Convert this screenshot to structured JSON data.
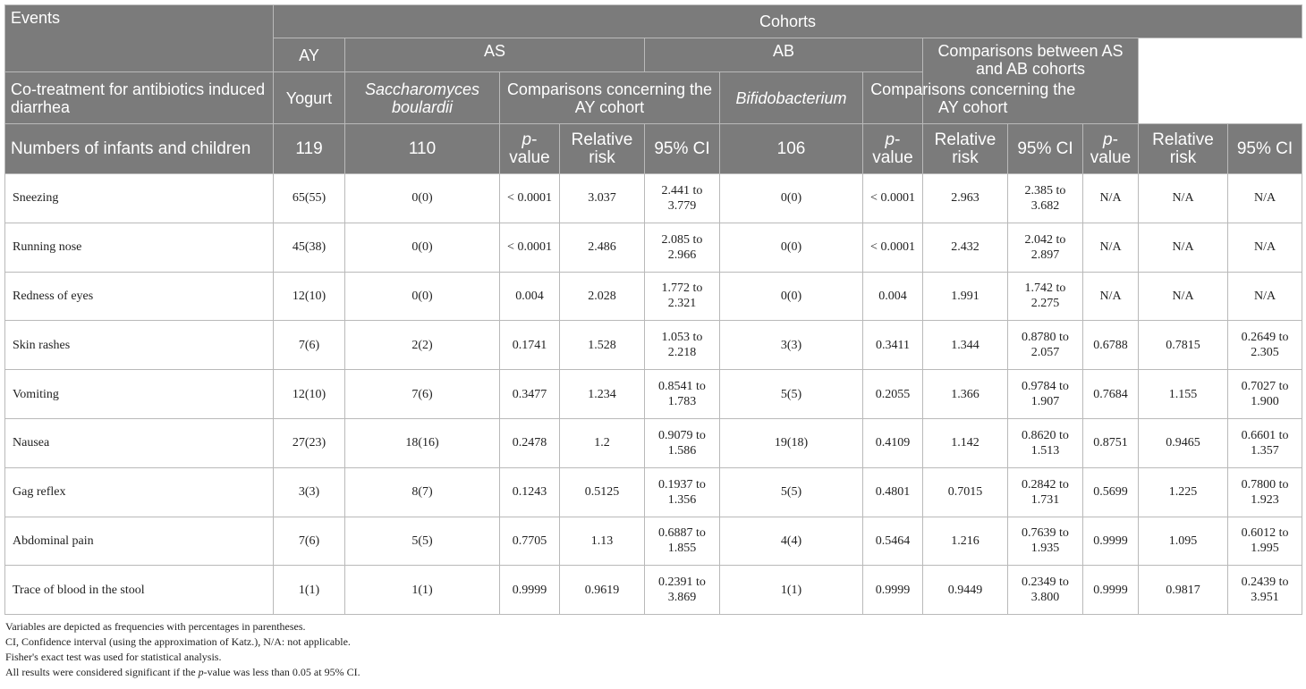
{
  "header": {
    "events": "Events",
    "cohorts": "Cohorts",
    "ay": "AY",
    "as": "AS",
    "ab": "AB",
    "as_ab_comparisons": "Comparisons between AS and AB cohorts",
    "cotreatment": "Co-treatment for antibiotics induced diarrhea",
    "yogurt": "Yogurt",
    "s_boulardii": "Saccharomyces boulardii",
    "comparisons_ay": "Comparisons concerning the AY cohort",
    "bifido": "Bifidobacterium",
    "numbers_label": "Numbers of infants and children",
    "n_ay": "119",
    "n_as": "110",
    "n_ab": "106",
    "p_italic": "p",
    "p_rest": "-value",
    "rr": "Relative risk",
    "ci": "95% CI"
  },
  "rows": [
    {
      "event": "Sneezing",
      "ay": "65(55)",
      "as": "0(0)",
      "as_p": "< 0.0001",
      "as_rr": "3.037",
      "as_ci": "2.441 to 3.779",
      "ab": "0(0)",
      "ab_p": "< 0.0001",
      "ab_rr": "2.963",
      "ab_ci": "2.385 to 3.682",
      "cmp_p": "N/A",
      "cmp_rr": "N/A",
      "cmp_ci": "N/A"
    },
    {
      "event": "Running nose",
      "ay": "45(38)",
      "as": "0(0)",
      "as_p": "< 0.0001",
      "as_rr": "2.486",
      "as_ci": "2.085 to 2.966",
      "ab": "0(0)",
      "ab_p": "< 0.0001",
      "ab_rr": "2.432",
      "ab_ci": "2.042 to 2.897",
      "cmp_p": "N/A",
      "cmp_rr": "N/A",
      "cmp_ci": "N/A"
    },
    {
      "event": "Redness of eyes",
      "ay": "12(10)",
      "as": "0(0)",
      "as_p": "0.004",
      "as_rr": "2.028",
      "as_ci": "1.772 to 2.321",
      "ab": "0(0)",
      "ab_p": "0.004",
      "ab_rr": "1.991",
      "ab_ci": "1.742 to 2.275",
      "cmp_p": "N/A",
      "cmp_rr": "N/A",
      "cmp_ci": "N/A"
    },
    {
      "event": "Skin rashes",
      "ay": "7(6)",
      "as": "2(2)",
      "as_p": "0.1741",
      "as_rr": "1.528",
      "as_ci": "1.053 to 2.218",
      "ab": "3(3)",
      "ab_p": "0.3411",
      "ab_rr": "1.344",
      "ab_ci": "0.8780 to 2.057",
      "cmp_p": "0.6788",
      "cmp_rr": "0.7815",
      "cmp_ci": "0.2649 to 2.305"
    },
    {
      "event": "Vomiting",
      "ay": "12(10)",
      "as": "7(6)",
      "as_p": "0.3477",
      "as_rr": "1.234",
      "as_ci": "0.8541 to 1.783",
      "ab": "5(5)",
      "ab_p": "0.2055",
      "ab_rr": "1.366",
      "ab_ci": "0.9784 to 1.907",
      "cmp_p": "0.7684",
      "cmp_rr": "1.155",
      "cmp_ci": "0.7027 to 1.900"
    },
    {
      "event": "Nausea",
      "ay": "27(23)",
      "as": "18(16)",
      "as_p": "0.2478",
      "as_rr": "1.2",
      "as_ci": "0.9079 to 1.586",
      "ab": "19(18)",
      "ab_p": "0.4109",
      "ab_rr": "1.142",
      "ab_ci": "0.8620 to 1.513",
      "cmp_p": "0.8751",
      "cmp_rr": "0.9465",
      "cmp_ci": "0.6601 to 1.357"
    },
    {
      "event": "Gag reflex",
      "ay": "3(3)",
      "as": "8(7)",
      "as_p": "0.1243",
      "as_rr": "0.5125",
      "as_ci": "0.1937 to 1.356",
      "ab": "5(5)",
      "ab_p": "0.4801",
      "ab_rr": "0.7015",
      "ab_ci": "0.2842 to 1.731",
      "cmp_p": "0.5699",
      "cmp_rr": "1.225",
      "cmp_ci": "0.7800 to 1.923"
    },
    {
      "event": "Abdominal pain",
      "ay": "7(6)",
      "as": "5(5)",
      "as_p": "0.7705",
      "as_rr": "1.13",
      "as_ci": "0.6887 to 1.855",
      "ab": "4(4)",
      "ab_p": "0.5464",
      "ab_rr": "1.216",
      "ab_ci": "0.7639 to 1.935",
      "cmp_p": "0.9999",
      "cmp_rr": "1.095",
      "cmp_ci": "0.6012 to 1.995"
    },
    {
      "event": "Trace of blood in the stool",
      "ay": "1(1)",
      "as": "1(1)",
      "as_p": "0.9999",
      "as_rr": "0.9619",
      "as_ci": "0.2391 to 3.869",
      "ab": "1(1)",
      "ab_p": "0.9999",
      "ab_rr": "0.9449",
      "ab_ci": "0.2349 to 3.800",
      "cmp_p": "0.9999",
      "cmp_rr": "0.9817",
      "cmp_ci": "0.2439 to 3.951"
    }
  ],
  "notes": {
    "n1": "Variables are depicted as frequencies with percentages in parentheses.",
    "n2": "CI, Confidence interval (using the approximation of Katz.), N/A: not applicable.",
    "n3": "Fisher's exact test was used for statistical analysis.",
    "n4_pre": "All results were considered significant if the ",
    "n4_p": "p",
    "n4_post": "-value was less than 0.05 at 95% CI."
  }
}
